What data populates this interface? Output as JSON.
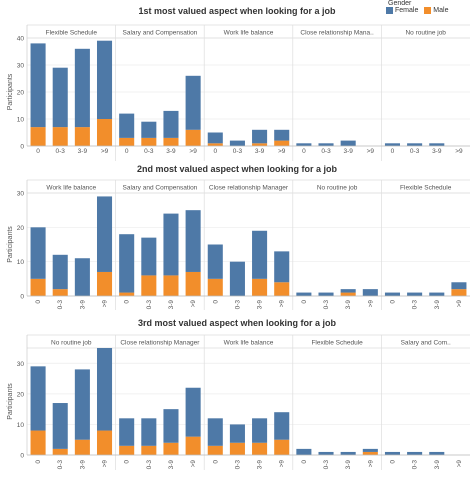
{
  "legend": {
    "title": "Gender",
    "items": [
      {
        "label": "Female",
        "color": "#4e79a7"
      },
      {
        "label": "Male",
        "color": "#f28e2b"
      }
    ]
  },
  "chart_data": [
    {
      "type": "bar",
      "stacked": true,
      "title": "1st most valued aspect when looking for a job",
      "ylabel": "Participants",
      "ylim": [
        0,
        40
      ],
      "yticks": [
        0,
        10,
        20,
        30,
        40
      ],
      "categories": [
        "0",
        "0-3",
        "3-9",
        ">9"
      ],
      "panels": [
        {
          "name": "Flexible Schedule",
          "series": [
            {
              "name": "Female",
              "values": [
                31,
                22,
                29,
                29
              ]
            },
            {
              "name": "Male",
              "values": [
                7,
                7,
                7,
                10
              ]
            }
          ]
        },
        {
          "name": "Salary and Compensation",
          "series": [
            {
              "name": "Female",
              "values": [
                9,
                6,
                10,
                20
              ]
            },
            {
              "name": "Male",
              "values": [
                3,
                3,
                3,
                6
              ]
            }
          ]
        },
        {
          "name": "Work life balance",
          "series": [
            {
              "name": "Female",
              "values": [
                4,
                2,
                5,
                4
              ]
            },
            {
              "name": "Male",
              "values": [
                1,
                0,
                1,
                2
              ]
            }
          ]
        },
        {
          "name": "Close relationship Mana..",
          "series": [
            {
              "name": "Female",
              "values": [
                1,
                1,
                2,
                0
              ]
            },
            {
              "name": "Male",
              "values": [
                0,
                0,
                0,
                0
              ]
            }
          ]
        },
        {
          "name": "No routine job",
          "series": [
            {
              "name": "Female",
              "values": [
                1,
                1,
                1,
                0
              ]
            },
            {
              "name": "Male",
              "values": [
                0,
                0,
                0,
                0
              ]
            }
          ]
        }
      ]
    },
    {
      "type": "bar",
      "stacked": true,
      "title": "2nd most valued aspect when looking for a job",
      "ylabel": "Participants",
      "ylim": [
        0,
        30
      ],
      "yticks": [
        0,
        10,
        20,
        30
      ],
      "categories": [
        "0",
        "0-3",
        "3-9",
        ">9"
      ],
      "panels": [
        {
          "name": "Work life balance",
          "series": [
            {
              "name": "Female",
              "values": [
                15,
                10,
                11,
                22
              ]
            },
            {
              "name": "Male",
              "values": [
                5,
                2,
                0,
                7
              ]
            }
          ]
        },
        {
          "name": "Salary and Compensation",
          "series": [
            {
              "name": "Female",
              "values": [
                17,
                11,
                18,
                18
              ]
            },
            {
              "name": "Male",
              "values": [
                1,
                6,
                6,
                7
              ]
            }
          ]
        },
        {
          "name": "Close relationship Manager",
          "series": [
            {
              "name": "Female",
              "values": [
                10,
                10,
                14,
                9
              ]
            },
            {
              "name": "Male",
              "values": [
                5,
                0,
                5,
                4
              ]
            }
          ]
        },
        {
          "name": "No routine job",
          "series": [
            {
              "name": "Female",
              "values": [
                1,
                1,
                1,
                2
              ]
            },
            {
              "name": "Male",
              "values": [
                0,
                0,
                1,
                0
              ]
            }
          ]
        },
        {
          "name": "Flexible Schedule",
          "series": [
            {
              "name": "Female",
              "values": [
                1,
                1,
                1,
                2
              ]
            },
            {
              "name": "Male",
              "values": [
                0,
                0,
                0,
                2
              ]
            }
          ]
        }
      ]
    },
    {
      "type": "bar",
      "stacked": true,
      "title": "3rd most valued aspect when looking for a job",
      "ylabel": "Participants",
      "ylim": [
        0,
        35
      ],
      "yticks": [
        0,
        10,
        20,
        30
      ],
      "categories": [
        "0",
        "0-3",
        "3-9",
        ">9"
      ],
      "panels": [
        {
          "name": "No routine job",
          "series": [
            {
              "name": "Female",
              "values": [
                21,
                15,
                23,
                27
              ]
            },
            {
              "name": "Male",
              "values": [
                8,
                2,
                5,
                8
              ]
            }
          ]
        },
        {
          "name": "Close relationship Manager",
          "series": [
            {
              "name": "Female",
              "values": [
                9,
                9,
                11,
                16
              ]
            },
            {
              "name": "Male",
              "values": [
                3,
                3,
                4,
                6
              ]
            }
          ]
        },
        {
          "name": "Work life balance",
          "series": [
            {
              "name": "Female",
              "values": [
                9,
                6,
                8,
                9
              ]
            },
            {
              "name": "Male",
              "values": [
                3,
                4,
                4,
                5
              ]
            }
          ]
        },
        {
          "name": "Flexible Schedule",
          "series": [
            {
              "name": "Female",
              "values": [
                2,
                1,
                1,
                1
              ]
            },
            {
              "name": "Male",
              "values": [
                0,
                0,
                0,
                1
              ]
            }
          ]
        },
        {
          "name": "Salary and Com..",
          "series": [
            {
              "name": "Female",
              "values": [
                1,
                1,
                1,
                0
              ]
            },
            {
              "name": "Male",
              "values": [
                0,
                0,
                0,
                0
              ]
            }
          ]
        }
      ]
    }
  ]
}
